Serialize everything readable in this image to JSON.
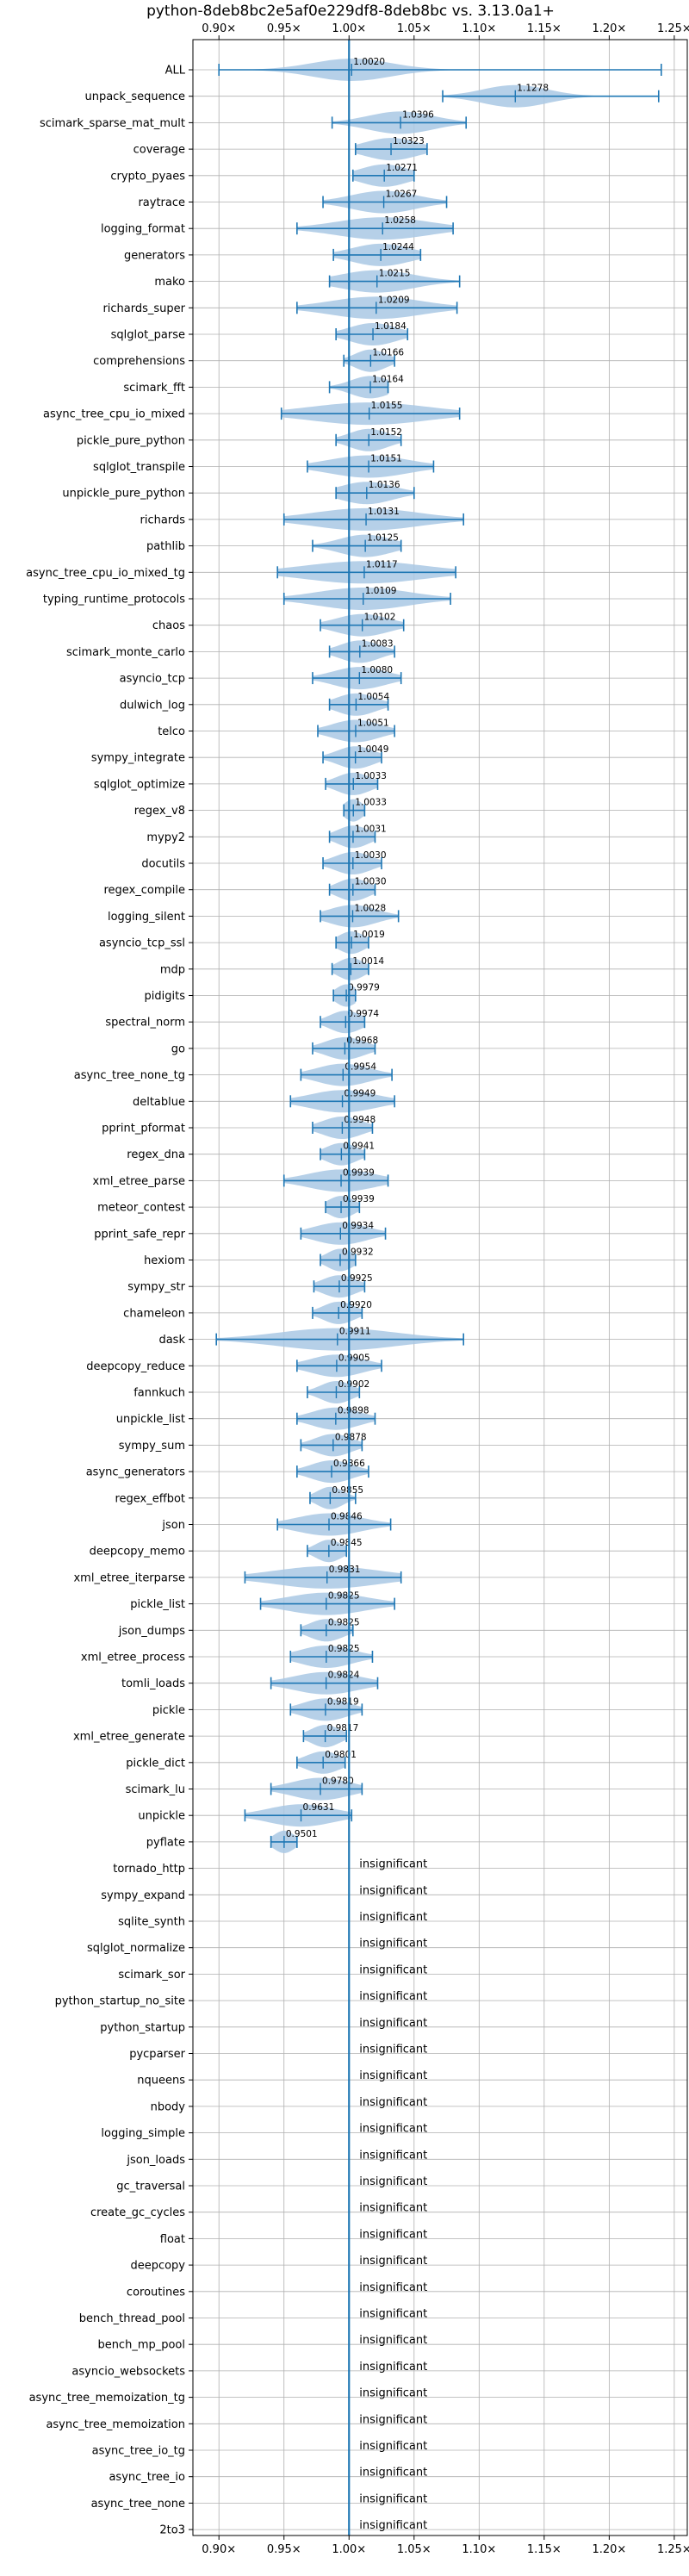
{
  "chart_data": {
    "type": "violin",
    "title": "python-8deb8bc2e5af0e229df8-8deb8bc vs. 3.13.0a1+",
    "xlabel": "",
    "ylabel": "",
    "xlim": [
      0.88,
      1.26
    ],
    "xticks": [
      0.9,
      0.95,
      1.0,
      1.05,
      1.1,
      1.15,
      1.2,
      1.25
    ],
    "xtick_labels": [
      "0.90×",
      "0.95×",
      "1.00×",
      "1.05×",
      "1.10×",
      "1.15×",
      "1.20×",
      "1.25×"
    ],
    "grid": true,
    "reference_line": 1.0,
    "colors": {
      "violin": "#a9c8e4",
      "line": "#1f77b4",
      "grid": "#b0b0b0"
    },
    "insignificant_label": "insignificant",
    "benchmarks": [
      {
        "name": "ALL",
        "value": 1.002,
        "min": 0.9,
        "max": 1.24,
        "spread": 0.03
      },
      {
        "name": "unpack_sequence",
        "value": 1.1278,
        "min": 1.072,
        "max": 1.238,
        "spread": 0.025
      },
      {
        "name": "scimark_sparse_mat_mult",
        "value": 1.0396,
        "min": 0.987,
        "max": 1.09,
        "spread": 0.025
      },
      {
        "name": "coverage",
        "value": 1.0323,
        "min": 1.005,
        "max": 1.06,
        "spread": 0.02
      },
      {
        "name": "crypto_pyaes",
        "value": 1.0271,
        "min": 1.003,
        "max": 1.05,
        "spread": 0.018
      },
      {
        "name": "raytrace",
        "value": 1.0267,
        "min": 0.98,
        "max": 1.075,
        "spread": 0.025
      },
      {
        "name": "logging_format",
        "value": 1.0258,
        "min": 0.96,
        "max": 1.08,
        "spread": 0.035
      },
      {
        "name": "generators",
        "value": 1.0244,
        "min": 0.988,
        "max": 1.055,
        "spread": 0.022
      },
      {
        "name": "mako",
        "value": 1.0215,
        "min": 0.985,
        "max": 1.085,
        "spread": 0.028
      },
      {
        "name": "richards_super",
        "value": 1.0209,
        "min": 0.96,
        "max": 1.083,
        "spread": 0.035
      },
      {
        "name": "sqlglot_parse",
        "value": 1.0184,
        "min": 0.99,
        "max": 1.045,
        "spread": 0.018
      },
      {
        "name": "comprehensions",
        "value": 1.0166,
        "min": 0.996,
        "max": 1.035,
        "spread": 0.012
      },
      {
        "name": "scimark_fft",
        "value": 1.0164,
        "min": 0.985,
        "max": 1.03,
        "spread": 0.015
      },
      {
        "name": "async_tree_cpu_io_mixed",
        "value": 1.0155,
        "min": 0.948,
        "max": 1.085,
        "spread": 0.045
      },
      {
        "name": "pickle_pure_python",
        "value": 1.0152,
        "min": 0.99,
        "max": 1.04,
        "spread": 0.015
      },
      {
        "name": "sqlglot_transpile",
        "value": 1.0151,
        "min": 0.968,
        "max": 1.065,
        "spread": 0.03
      },
      {
        "name": "unpickle_pure_python",
        "value": 1.0136,
        "min": 0.99,
        "max": 1.05,
        "spread": 0.02
      },
      {
        "name": "richards",
        "value": 1.0131,
        "min": 0.95,
        "max": 1.088,
        "spread": 0.04
      },
      {
        "name": "pathlib",
        "value": 1.0125,
        "min": 0.972,
        "max": 1.04,
        "spread": 0.02
      },
      {
        "name": "async_tree_cpu_io_mixed_tg",
        "value": 1.0117,
        "min": 0.945,
        "max": 1.082,
        "spread": 0.045
      },
      {
        "name": "typing_runtime_protocols",
        "value": 1.0109,
        "min": 0.95,
        "max": 1.078,
        "spread": 0.035
      },
      {
        "name": "chaos",
        "value": 1.0102,
        "min": 0.978,
        "max": 1.042,
        "spread": 0.02
      },
      {
        "name": "scimark_monte_carlo",
        "value": 1.0083,
        "min": 0.985,
        "max": 1.035,
        "spread": 0.015
      },
      {
        "name": "asyncio_tcp",
        "value": 1.008,
        "min": 0.972,
        "max": 1.04,
        "spread": 0.02
      },
      {
        "name": "dulwich_log",
        "value": 1.0054,
        "min": 0.985,
        "max": 1.03,
        "spread": 0.015
      },
      {
        "name": "telco",
        "value": 1.0051,
        "min": 0.976,
        "max": 1.035,
        "spread": 0.018
      },
      {
        "name": "sympy_integrate",
        "value": 1.0049,
        "min": 0.98,
        "max": 1.025,
        "spread": 0.014
      },
      {
        "name": "sqlglot_optimize",
        "value": 1.0033,
        "min": 0.982,
        "max": 1.022,
        "spread": 0.013
      },
      {
        "name": "regex_v8",
        "value": 1.0033,
        "min": 0.996,
        "max": 1.012,
        "spread": 0.007
      },
      {
        "name": "mypy2",
        "value": 1.0031,
        "min": 0.985,
        "max": 1.02,
        "spread": 0.012
      },
      {
        "name": "docutils",
        "value": 1.003,
        "min": 0.98,
        "max": 1.025,
        "spread": 0.014
      },
      {
        "name": "regex_compile",
        "value": 1.003,
        "min": 0.985,
        "max": 1.02,
        "spread": 0.012
      },
      {
        "name": "logging_silent",
        "value": 1.0028,
        "min": 0.978,
        "max": 1.038,
        "spread": 0.018
      },
      {
        "name": "asyncio_tcp_ssl",
        "value": 1.0019,
        "min": 0.99,
        "max": 1.015,
        "spread": 0.01
      },
      {
        "name": "mdp",
        "value": 1.0014,
        "min": 0.987,
        "max": 1.015,
        "spread": 0.01
      },
      {
        "name": "pidigits",
        "value": 0.9979,
        "min": 0.988,
        "max": 1.005,
        "spread": 0.008
      },
      {
        "name": "spectral_norm",
        "value": 0.9974,
        "min": 0.978,
        "max": 1.012,
        "spread": 0.012
      },
      {
        "name": "go",
        "value": 0.9968,
        "min": 0.972,
        "max": 1.02,
        "spread": 0.015
      },
      {
        "name": "async_tree_none_tg",
        "value": 0.9954,
        "min": 0.963,
        "max": 1.033,
        "spread": 0.02
      },
      {
        "name": "deltablue",
        "value": 0.9949,
        "min": 0.955,
        "max": 1.035,
        "spread": 0.025
      },
      {
        "name": "pprint_pformat",
        "value": 0.9948,
        "min": 0.972,
        "max": 1.018,
        "spread": 0.015
      },
      {
        "name": "regex_dna",
        "value": 0.9941,
        "min": 0.978,
        "max": 1.012,
        "spread": 0.012
      },
      {
        "name": "xml_etree_parse",
        "value": 0.9939,
        "min": 0.95,
        "max": 1.03,
        "spread": 0.025
      },
      {
        "name": "meteor_contest",
        "value": 0.9939,
        "min": 0.982,
        "max": 1.008,
        "spread": 0.01
      },
      {
        "name": "pprint_safe_repr",
        "value": 0.9934,
        "min": 0.963,
        "max": 1.028,
        "spread": 0.02
      },
      {
        "name": "hexiom",
        "value": 0.9932,
        "min": 0.978,
        "max": 1.005,
        "spread": 0.01
      },
      {
        "name": "sympy_str",
        "value": 0.9925,
        "min": 0.973,
        "max": 1.012,
        "spread": 0.013
      },
      {
        "name": "chameleon",
        "value": 0.992,
        "min": 0.972,
        "max": 1.01,
        "spread": 0.012
      },
      {
        "name": "dask",
        "value": 0.9911,
        "min": 0.898,
        "max": 1.088,
        "spread": 0.045
      },
      {
        "name": "deepcopy_reduce",
        "value": 0.9905,
        "min": 0.96,
        "max": 1.025,
        "spread": 0.02
      },
      {
        "name": "fannkuch",
        "value": 0.9902,
        "min": 0.968,
        "max": 1.008,
        "spread": 0.012
      },
      {
        "name": "unpickle_list",
        "value": 0.9898,
        "min": 0.96,
        "max": 1.02,
        "spread": 0.018
      },
      {
        "name": "sympy_sum",
        "value": 0.9878,
        "min": 0.963,
        "max": 1.01,
        "spread": 0.014
      },
      {
        "name": "async_generators",
        "value": 0.9866,
        "min": 0.96,
        "max": 1.015,
        "spread": 0.016
      },
      {
        "name": "regex_effbot",
        "value": 0.9855,
        "min": 0.97,
        "max": 1.005,
        "spread": 0.01
      },
      {
        "name": "json",
        "value": 0.9846,
        "min": 0.945,
        "max": 1.032,
        "spread": 0.025
      },
      {
        "name": "deepcopy_memo",
        "value": 0.9845,
        "min": 0.968,
        "max": 0.998,
        "spread": 0.01
      },
      {
        "name": "xml_etree_iterparse",
        "value": 0.9831,
        "min": 0.92,
        "max": 1.04,
        "spread": 0.04
      },
      {
        "name": "pickle_list",
        "value": 0.9825,
        "min": 0.932,
        "max": 1.035,
        "spread": 0.03
      },
      {
        "name": "json_dumps",
        "value": 0.9825,
        "min": 0.963,
        "max": 1.003,
        "spread": 0.013
      },
      {
        "name": "xml_etree_process",
        "value": 0.9825,
        "min": 0.955,
        "max": 1.018,
        "spread": 0.02
      },
      {
        "name": "tomli_loads",
        "value": 0.9824,
        "min": 0.94,
        "max": 1.022,
        "spread": 0.025
      },
      {
        "name": "pickle",
        "value": 0.9819,
        "min": 0.955,
        "max": 1.01,
        "spread": 0.017
      },
      {
        "name": "xml_etree_generate",
        "value": 0.9817,
        "min": 0.965,
        "max": 0.998,
        "spread": 0.011
      },
      {
        "name": "pickle_dict",
        "value": 0.9801,
        "min": 0.96,
        "max": 0.997,
        "spread": 0.013
      },
      {
        "name": "scimark_lu",
        "value": 0.978,
        "min": 0.94,
        "max": 1.01,
        "spread": 0.022
      },
      {
        "name": "unpickle",
        "value": 0.9631,
        "min": 0.92,
        "max": 1.002,
        "spread": 0.025
      },
      {
        "name": "pyflate",
        "value": 0.9501,
        "min": 0.94,
        "max": 0.96,
        "spread": 0.008
      },
      {
        "name": "tornado_http",
        "value": null
      },
      {
        "name": "sympy_expand",
        "value": null
      },
      {
        "name": "sqlite_synth",
        "value": null
      },
      {
        "name": "sqlglot_normalize",
        "value": null
      },
      {
        "name": "scimark_sor",
        "value": null
      },
      {
        "name": "python_startup_no_site",
        "value": null
      },
      {
        "name": "python_startup",
        "value": null
      },
      {
        "name": "pycparser",
        "value": null
      },
      {
        "name": "nqueens",
        "value": null
      },
      {
        "name": "nbody",
        "value": null
      },
      {
        "name": "logging_simple",
        "value": null
      },
      {
        "name": "json_loads",
        "value": null
      },
      {
        "name": "gc_traversal",
        "value": null
      },
      {
        "name": "create_gc_cycles",
        "value": null
      },
      {
        "name": "float",
        "value": null
      },
      {
        "name": "deepcopy",
        "value": null
      },
      {
        "name": "coroutines",
        "value": null
      },
      {
        "name": "bench_thread_pool",
        "value": null
      },
      {
        "name": "bench_mp_pool",
        "value": null
      },
      {
        "name": "asyncio_websockets",
        "value": null
      },
      {
        "name": "async_tree_memoization_tg",
        "value": null
      },
      {
        "name": "async_tree_memoization",
        "value": null
      },
      {
        "name": "async_tree_io_tg",
        "value": null
      },
      {
        "name": "async_tree_io",
        "value": null
      },
      {
        "name": "async_tree_none",
        "value": null
      },
      {
        "name": "2to3",
        "value": null
      }
    ]
  }
}
